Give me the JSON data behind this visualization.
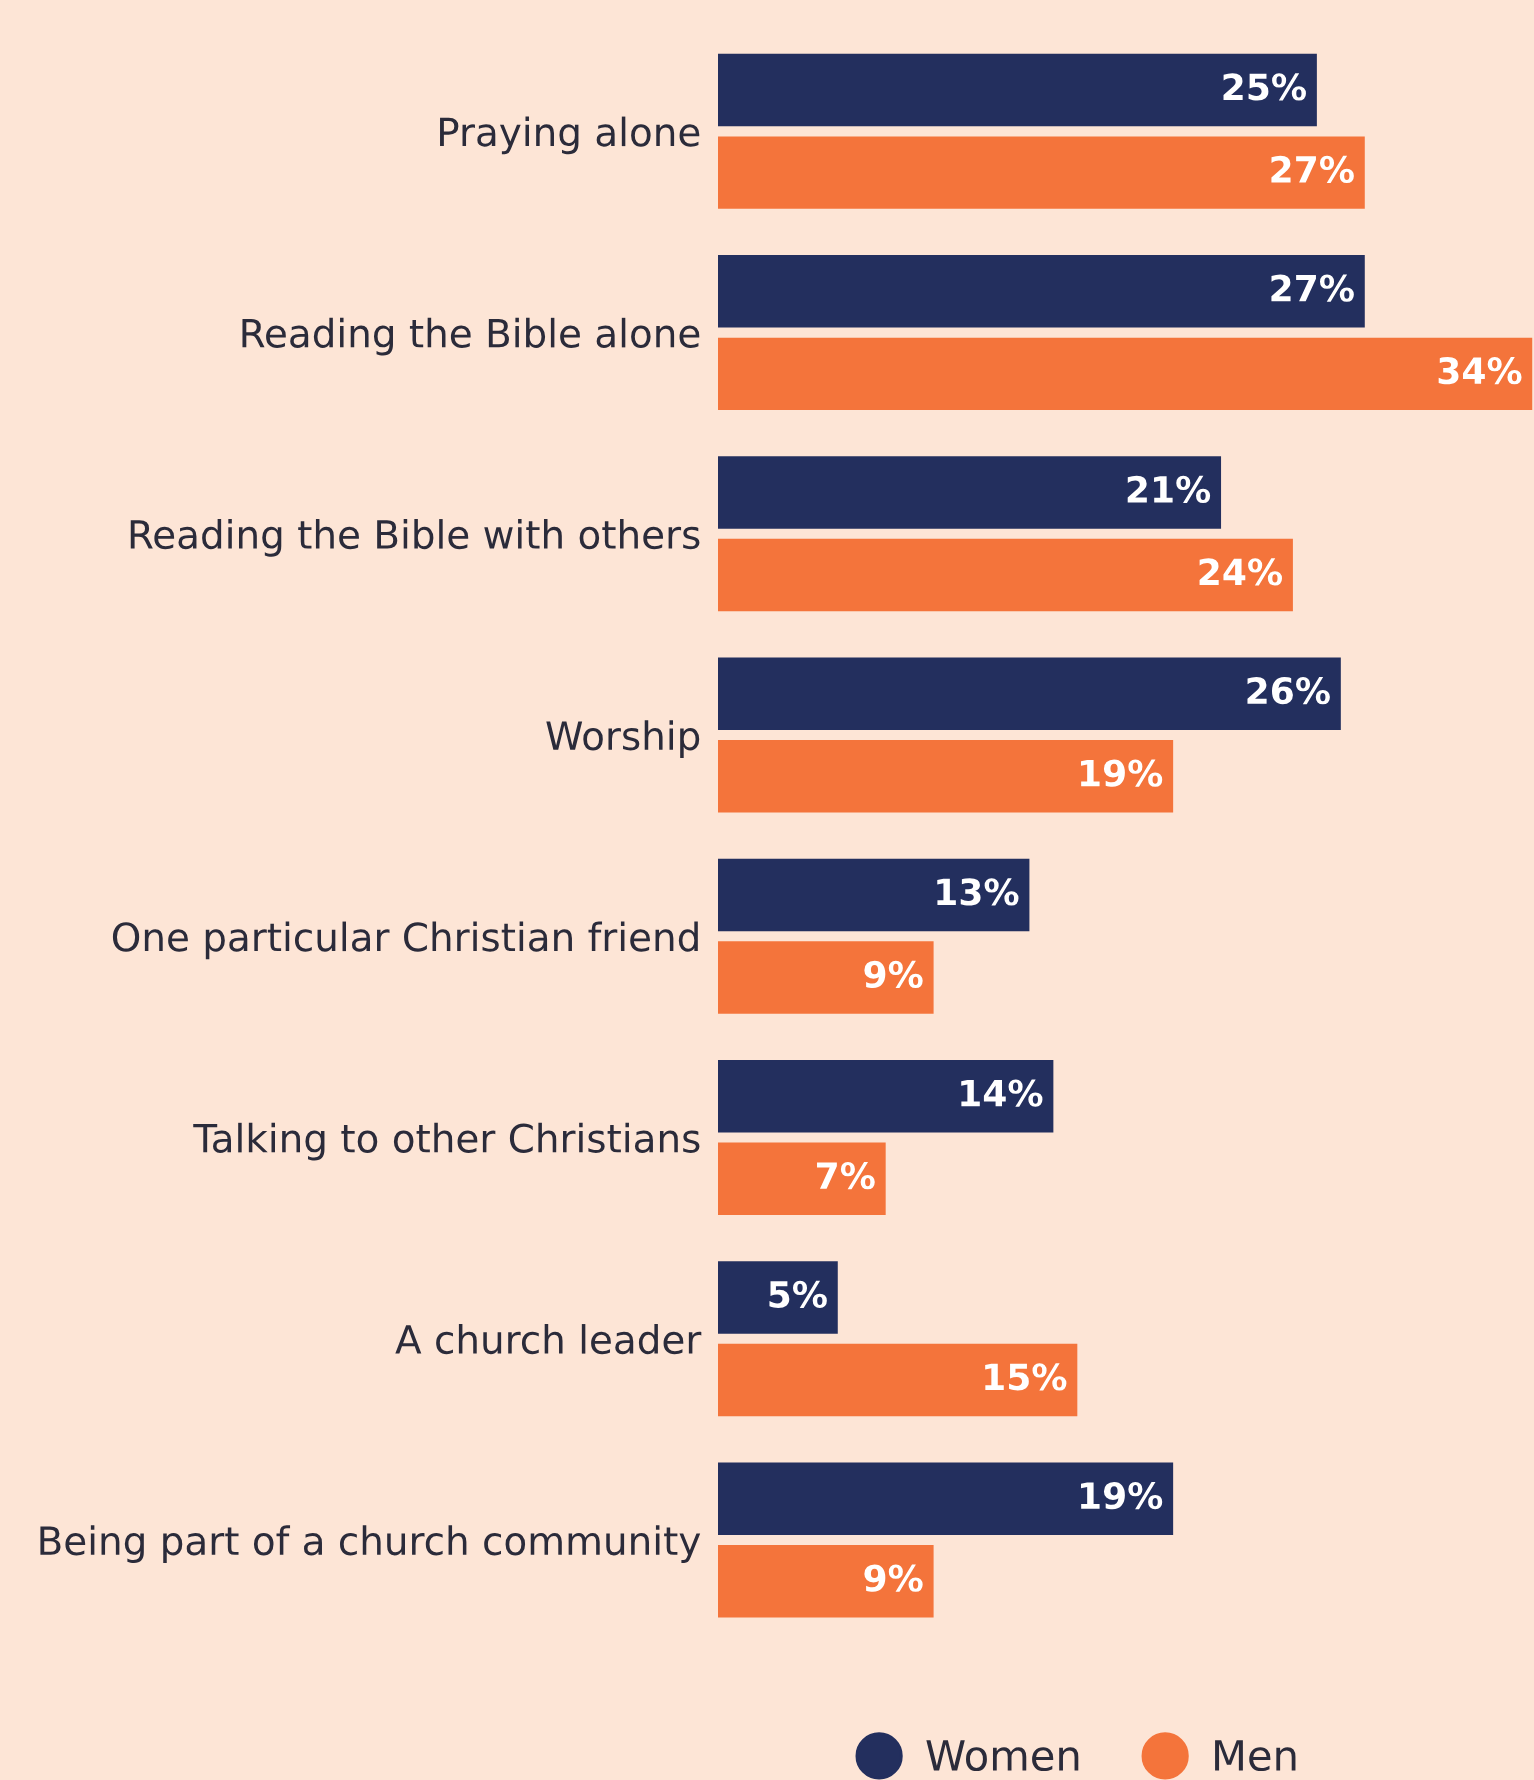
{
  "chart_data": {
    "type": "bar",
    "orientation": "horizontal",
    "categories": [
      "Praying alone",
      "Reading the Bible alone",
      "Reading the Bible with others",
      "Worship",
      "One particular Christian friend",
      "Talking to other Christians",
      "A church leader",
      "Being part of a church community"
    ],
    "series": [
      {
        "name": "Women",
        "color": "#232f5e",
        "values": [
          25,
          27,
          21,
          26,
          13,
          14,
          5,
          19
        ],
        "value_labels": [
          "25%",
          "27%",
          "21%",
          "26%",
          "13%",
          "14%",
          "5%",
          "19%"
        ]
      },
      {
        "name": "Men",
        "color": "#f4743b",
        "values": [
          27,
          34,
          24,
          19,
          9,
          7,
          15,
          9
        ],
        "value_labels": [
          "27%",
          "34%",
          "24%",
          "19%",
          "9%",
          "7%",
          "15%",
          "9%"
        ]
      }
    ],
    "legend": "bottom",
    "grid": false
  }
}
